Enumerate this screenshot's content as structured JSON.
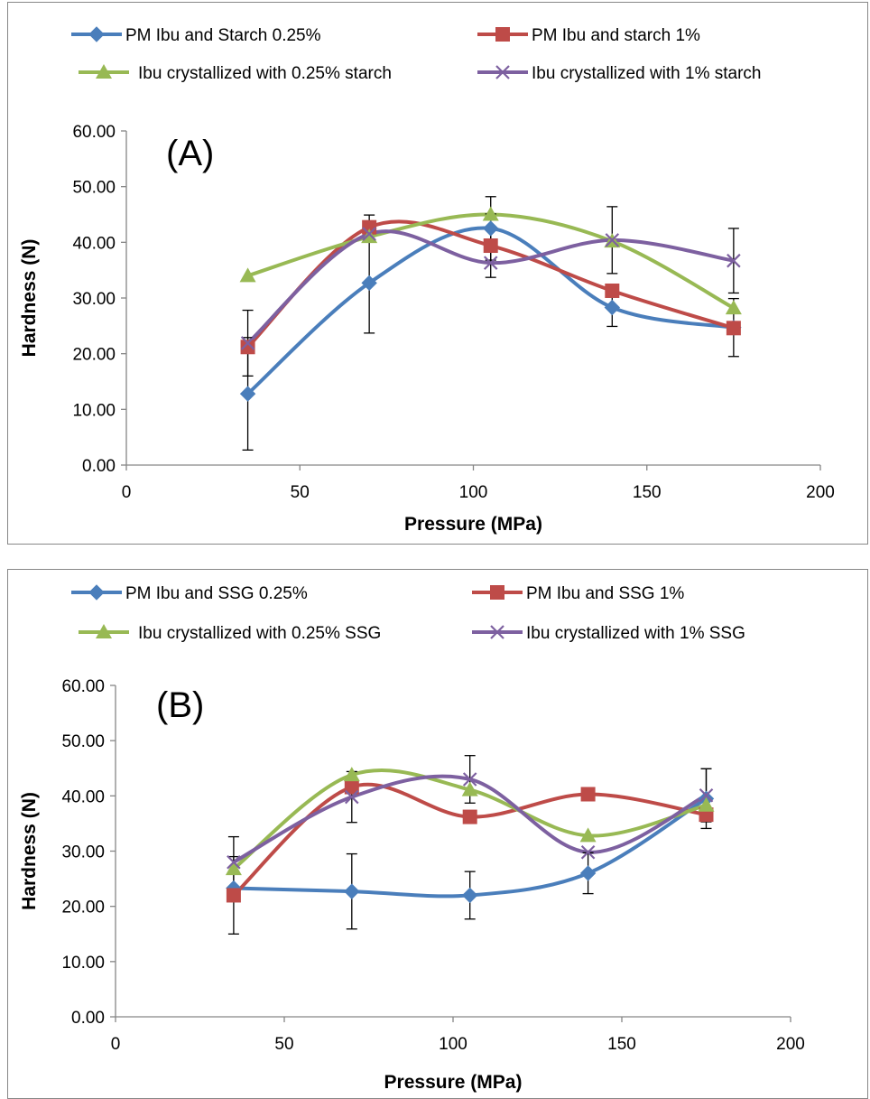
{
  "chart_data": [
    {
      "type": "line",
      "panel_label": "(A)",
      "xlabel": "Pressure (MPa)",
      "ylabel": "Hardness (N)",
      "xlim": [
        0,
        200
      ],
      "ylim": [
        0,
        60
      ],
      "x_ticks": [
        "0",
        "50",
        "100",
        "150",
        "200"
      ],
      "y_ticks": [
        "0.00",
        "10.00",
        "20.00",
        "30.00",
        "40.00",
        "50.00",
        "60.00"
      ],
      "legend_position": "top",
      "grid": false,
      "x": [
        35,
        70,
        105,
        140,
        175
      ],
      "series": [
        {
          "name": "PM Ibu and Starch 0.25%",
          "color": "#4a7ebb",
          "marker": "diamond",
          "values": [
            12.8,
            32.7,
            42.5,
            28.3,
            24.7
          ],
          "errors": [
            10.1,
            9.0,
            5.7,
            3.4,
            5.2
          ]
        },
        {
          "name": "PM Ibu and starch 1%",
          "color": "#be4b48",
          "marker": "square",
          "values": [
            21.2,
            42.7,
            39.4,
            31.3,
            24.6
          ],
          "errors": [
            0,
            2.2,
            5.7,
            0,
            0
          ]
        },
        {
          "name": "Ibu crystallized with 0.25% starch",
          "color": "#98b954",
          "marker": "triangle",
          "values": [
            34.0,
            41.0,
            45.0,
            40.2,
            28.2
          ],
          "errors": [
            0,
            0,
            0,
            0,
            0
          ]
        },
        {
          "name": "Ibu crystallized with 1% starch",
          "color": "#7d60a0",
          "marker": "x",
          "values": [
            21.9,
            41.5,
            36.3,
            40.4,
            36.7
          ],
          "errors": [
            5.9,
            0,
            0,
            6.0,
            5.8
          ]
        }
      ]
    },
    {
      "type": "line",
      "panel_label": "(B)",
      "xlabel": "Pressure (MPa)",
      "ylabel": "Hardness (N)",
      "xlim": [
        0,
        200
      ],
      "ylim": [
        0,
        60
      ],
      "x_ticks": [
        "0",
        "50",
        "100",
        "150",
        "200"
      ],
      "y_ticks": [
        "0.00",
        "10.00",
        "20.00",
        "30.00",
        "40.00",
        "50.00",
        "60.00"
      ],
      "legend_position": "top",
      "grid": false,
      "x": [
        35,
        70,
        105,
        140,
        175
      ],
      "series": [
        {
          "name": "PM Ibu and SSG 0.25%",
          "color": "#4a7ebb",
          "marker": "diamond",
          "values": [
            23.3,
            22.7,
            22.0,
            26.0,
            39.5
          ],
          "errors": [
            0,
            6.8,
            4.3,
            3.7,
            5.4
          ]
        },
        {
          "name": "PM Ibu and SSG 1%",
          "color": "#be4b48",
          "marker": "square",
          "values": [
            22.0,
            41.6,
            36.2,
            40.3,
            36.6
          ],
          "errors": [
            7.0,
            0,
            0,
            0,
            0
          ]
        },
        {
          "name": "Ibu crystallized with 0.25% SSG",
          "color": "#98b954",
          "marker": "triangle",
          "values": [
            26.8,
            43.8,
            41.1,
            32.8,
            38.3
          ],
          "errors": [
            0,
            0,
            0,
            0,
            0
          ]
        },
        {
          "name": "Ibu crystallized with 1% SSG",
          "color": "#7d60a0",
          "marker": "x",
          "values": [
            28.0,
            39.8,
            43.0,
            29.8,
            40.1
          ],
          "errors": [
            4.6,
            4.6,
            4.3,
            0,
            4.8
          ]
        }
      ]
    }
  ]
}
